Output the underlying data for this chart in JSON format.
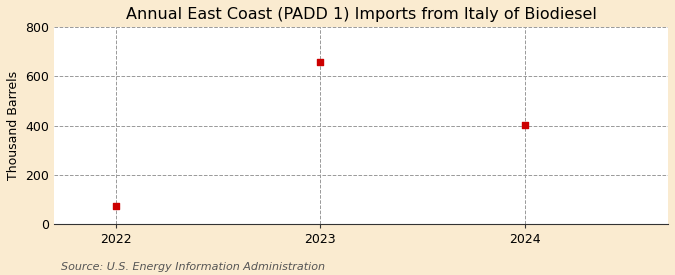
{
  "title": "Annual East Coast (PADD 1) Imports from Italy of Biodiesel",
  "ylabel": "Thousand Barrels",
  "source": "Source: U.S. Energy Information Administration",
  "x": [
    2022,
    2023,
    2024
  ],
  "y": [
    75,
    660,
    403
  ],
  "xlim": [
    2021.7,
    2024.7
  ],
  "ylim": [
    0,
    800
  ],
  "yticks": [
    0,
    200,
    400,
    600,
    800
  ],
  "xticks": [
    2022,
    2023,
    2024
  ],
  "marker_color": "#cc0000",
  "marker_size": 5,
  "fig_bg_color": "#faebd0",
  "plot_bg_color": "#ffffff",
  "grid_color": "#999999",
  "title_fontsize": 11.5,
  "label_fontsize": 9,
  "tick_fontsize": 9,
  "source_fontsize": 8
}
